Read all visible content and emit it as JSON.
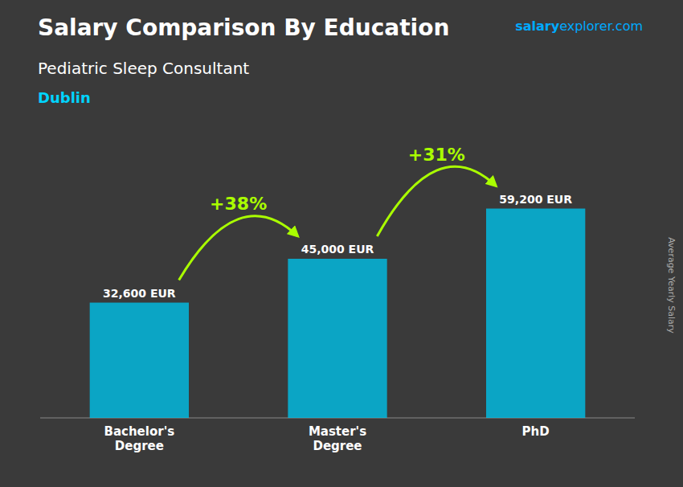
{
  "chart_data": {
    "type": "bar",
    "title": "Salary Comparison By Education",
    "subtitle": [
      "Pediatric Sleep Consultant",
      "Dublin"
    ],
    "watermark": [
      "salary",
      "explorer.com"
    ],
    "ylabel": "Average Yearly Salary",
    "categories": [
      "Bachelor's\nDegree",
      "Master's\nDegree",
      "PhD"
    ],
    "values": [
      32600,
      45000,
      59200
    ],
    "value_labels": [
      "32,600 EUR",
      "45,000 EUR",
      "59,200 EUR"
    ],
    "data_labels": true,
    "annotations": [
      "+38%",
      "+31%"
    ],
    "color": "#00c0e8",
    "ylim": [
      0,
      75000
    ],
    "tick_labels": "x",
    "grid": false
  }
}
